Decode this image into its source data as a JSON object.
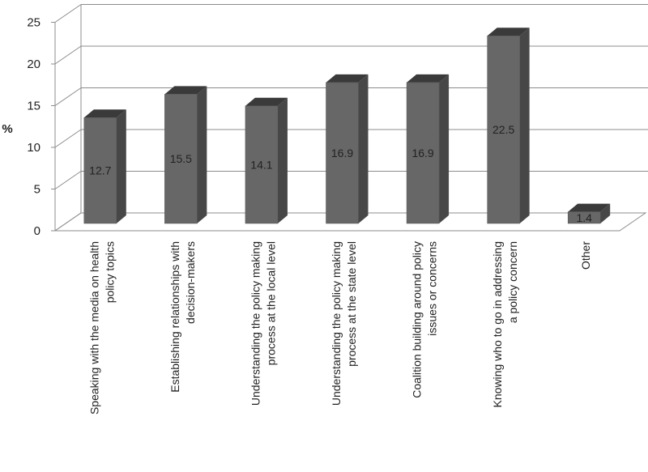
{
  "chart_data": {
    "type": "bar",
    "title": "",
    "xlabel": "",
    "ylabel": "%",
    "ylim": [
      0,
      25
    ],
    "yticks": [
      0,
      5,
      10,
      15,
      20,
      25
    ],
    "grid": true,
    "style": "3d",
    "categories": [
      [
        "Speaking with the media on health",
        "policy topics"
      ],
      [
        "Establishing relationships with",
        "decision-makers"
      ],
      [
        "Understanding the policy making",
        "process at the local level"
      ],
      [
        "Understanding the policy making",
        "process at the state level"
      ],
      [
        "Coalition building around policy",
        "issues or concerns"
      ],
      [
        "Knowing who to go in addressing",
        "a policy concern"
      ],
      [
        "Other"
      ]
    ],
    "values": [
      12.7,
      15.5,
      14.1,
      16.9,
      16.9,
      22.5,
      1.4
    ],
    "data_labels": [
      "12.7",
      "15.5",
      "14.1",
      "16.9",
      "16.9",
      "22.5",
      "1.4"
    ],
    "colors": {
      "bar_front": "#676767",
      "bar_side": "#474747",
      "bar_top": "#3a3a3a",
      "grid": "#8c8c8c"
    }
  }
}
